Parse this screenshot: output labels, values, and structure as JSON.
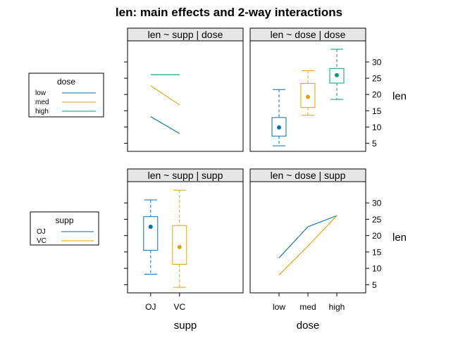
{
  "chart_data": {
    "type": "trellis-interaction",
    "title": "len: main effects and 2-way interactions",
    "response": "len",
    "y_ticks": [
      5,
      10,
      15,
      20,
      25,
      30
    ],
    "ylim": [
      2.5,
      36.5
    ],
    "colors": {
      "low": "#0072B2",
      "med": "#E69F00",
      "high": "#009E73",
      "OJ": "#0072B2",
      "VC": "#E69F00"
    },
    "row_factors": [
      {
        "name": "dose",
        "levels": [
          "low",
          "med",
          "high"
        ]
      },
      {
        "name": "supp",
        "levels": [
          "OJ",
          "VC"
        ]
      }
    ],
    "col_factors": [
      {
        "name": "supp",
        "levels": [
          "OJ",
          "VC"
        ]
      },
      {
        "name": "dose",
        "levels": [
          "low",
          "med",
          "high"
        ]
      }
    ],
    "panels": [
      {
        "strip": "len ~ supp | dose",
        "kind": "interaction",
        "x_levels": [
          "OJ",
          "VC"
        ],
        "series": [
          {
            "name": "low",
            "values": [
              13.2,
              8.0
            ]
          },
          {
            "name": "med",
            "values": [
              22.7,
              16.8
            ]
          },
          {
            "name": "high",
            "values": [
              26.1,
              26.1
            ]
          }
        ]
      },
      {
        "strip": "len ~ dose | dose",
        "kind": "boxplot",
        "x_levels": [
          "low",
          "med",
          "high"
        ],
        "boxes": [
          {
            "level": "low",
            "whisker_low": 4.2,
            "q1": 7.2,
            "median": 9.85,
            "q3": 12.9,
            "whisker_high": 21.5,
            "mean": 10.6
          },
          {
            "level": "med",
            "whisker_low": 13.6,
            "q1": 16.0,
            "median": 19.25,
            "q3": 23.4,
            "whisker_high": 27.3,
            "mean": 19.7
          },
          {
            "level": "high",
            "whisker_low": 18.5,
            "q1": 23.5,
            "median": 25.95,
            "q3": 28.0,
            "whisker_high": 33.9,
            "mean": 26.1
          }
        ]
      },
      {
        "strip": "len ~ supp | supp",
        "kind": "boxplot",
        "x_levels": [
          "OJ",
          "VC"
        ],
        "boxes": [
          {
            "level": "OJ",
            "whisker_low": 8.2,
            "q1": 15.5,
            "median": 22.7,
            "q3": 25.8,
            "whisker_high": 30.9,
            "mean": 20.7
          },
          {
            "level": "VC",
            "whisker_low": 4.2,
            "q1": 11.2,
            "median": 16.5,
            "q3": 23.1,
            "whisker_high": 33.9,
            "mean": 17.0
          }
        ]
      },
      {
        "strip": "len ~ dose | supp",
        "kind": "interaction",
        "x_levels": [
          "low",
          "med",
          "high"
        ],
        "series": [
          {
            "name": "OJ",
            "values": [
              13.2,
              22.7,
              26.1
            ]
          },
          {
            "name": "VC",
            "values": [
              8.0,
              16.8,
              26.1
            ]
          }
        ]
      }
    ],
    "legends": [
      {
        "title": "dose",
        "entries": [
          "low",
          "med",
          "high"
        ]
      },
      {
        "title": "supp",
        "entries": [
          "OJ",
          "VC"
        ]
      }
    ],
    "x_labels": [
      "supp",
      "dose"
    ],
    "x_tick_labels": [
      [
        "OJ",
        "VC"
      ],
      [
        "low",
        "med",
        "high"
      ]
    ],
    "y_label_right": "len"
  }
}
